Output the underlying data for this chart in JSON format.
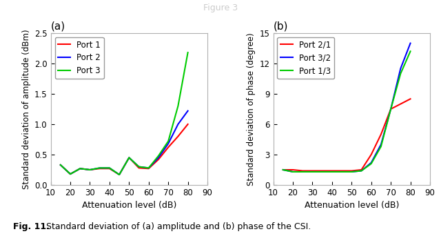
{
  "x": [
    15,
    20,
    25,
    30,
    35,
    40,
    45,
    50,
    55,
    60,
    65,
    70,
    75,
    80
  ],
  "amp_port1": [
    0.33,
    0.18,
    0.27,
    0.25,
    0.27,
    0.27,
    0.17,
    0.45,
    0.28,
    0.27,
    0.42,
    0.62,
    0.8,
    1.0
  ],
  "amp_port2": [
    0.33,
    0.18,
    0.27,
    0.25,
    0.28,
    0.28,
    0.17,
    0.45,
    0.3,
    0.28,
    0.45,
    0.68,
    1.0,
    1.22
  ],
  "amp_port3": [
    0.33,
    0.18,
    0.27,
    0.25,
    0.28,
    0.28,
    0.17,
    0.45,
    0.3,
    0.28,
    0.48,
    0.72,
    1.3,
    2.18
  ],
  "phase_port21": [
    1.5,
    1.5,
    1.4,
    1.4,
    1.4,
    1.4,
    1.4,
    1.4,
    1.5,
    3.0,
    5.0,
    7.5,
    8.0,
    8.5
  ],
  "phase_port32": [
    1.5,
    1.3,
    1.3,
    1.3,
    1.3,
    1.3,
    1.3,
    1.3,
    1.4,
    2.2,
    4.0,
    7.5,
    11.5,
    14.0
  ],
  "phase_port13": [
    1.5,
    1.3,
    1.3,
    1.3,
    1.3,
    1.3,
    1.3,
    1.3,
    1.4,
    2.1,
    3.8,
    7.5,
    11.0,
    13.2
  ],
  "color_red": "#FF0000",
  "color_blue": "#0000FF",
  "color_green": "#00CC00",
  "label_a": "(a)",
  "label_b": "(b)",
  "legend_amp": [
    "Port 1",
    "Port 2",
    "Port 3"
  ],
  "legend_phase": [
    "Port 2/1",
    "Port 3/2",
    "Port 1/3"
  ],
  "ylabel_amp": "Standard deviation of amplitude (dBm)",
  "ylabel_phase": "Standard deviation of phase (degree)",
  "xlabel": "Attenuation level (dB)",
  "xlim": [
    10,
    90
  ],
  "ylim_amp": [
    0,
    2.5
  ],
  "ylim_phase": [
    0,
    15
  ],
  "xticks": [
    10,
    20,
    30,
    40,
    50,
    60,
    70,
    80,
    90
  ],
  "yticks_amp": [
    0,
    0.5,
    1.0,
    1.5,
    2.0,
    2.5
  ],
  "yticks_phase": [
    0,
    3,
    6,
    9,
    12,
    15
  ],
  "caption_bold": "Fig. 11.",
  "caption_normal": " Standard deviation of (a) amplitude and (b) phase of the CSI.",
  "top_label": "Figure 3",
  "spine_color": "#b0b0b0",
  "linewidth": 1.5
}
